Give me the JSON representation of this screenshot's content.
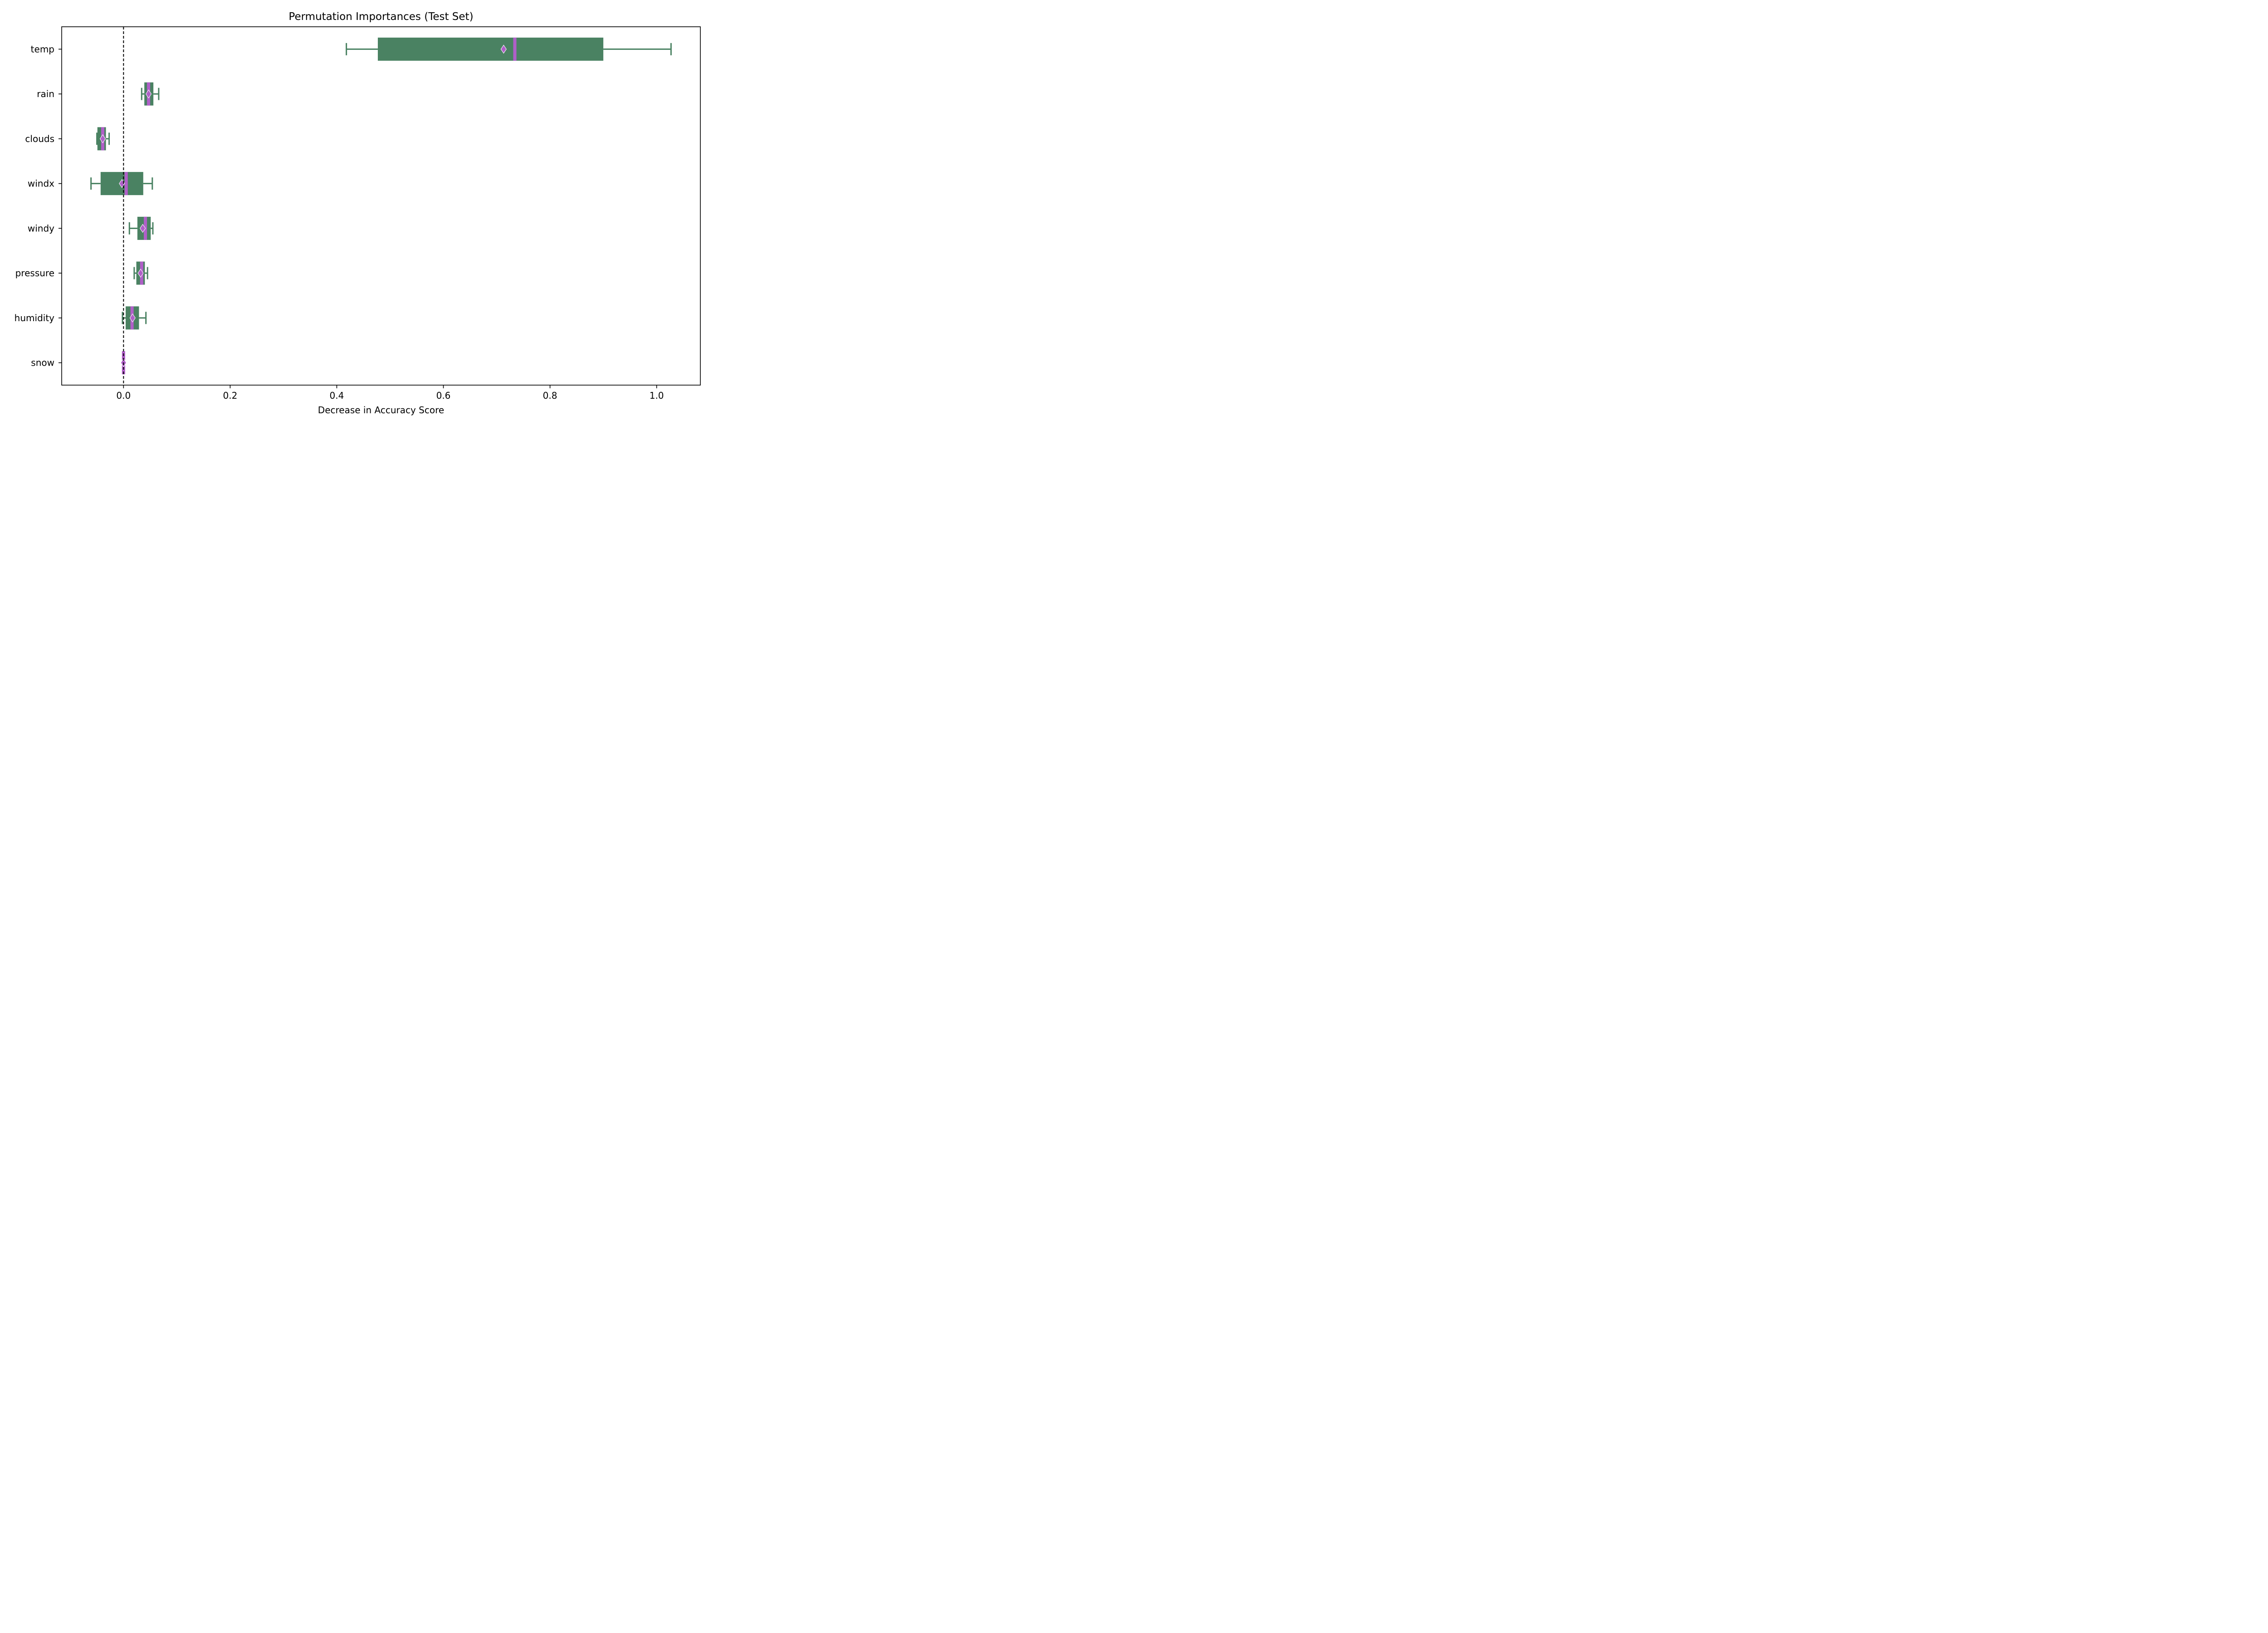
{
  "chart_data": {
    "type": "boxplot",
    "orientation": "horizontal",
    "title": "Permutation Importances (Test Set)",
    "xlabel": "Decrease in Accuracy Score",
    "ylabel": "",
    "xlim": [
      -0.116,
      1.082
    ],
    "x_ticks": [
      0.0,
      0.2,
      0.4,
      0.6,
      0.8,
      1.0
    ],
    "x_tick_labels": [
      "0.0",
      "0.2",
      "0.4",
      "0.6",
      "0.8",
      "1.0"
    ],
    "grid": false,
    "reference_line": {
      "x": 0.0,
      "style": "dashed",
      "color": "#000000"
    },
    "colors": {
      "box": "#4a8262",
      "median": "#b05fc8",
      "mean_marker": "#b05fc8",
      "whisker": "#4a8262"
    },
    "features": [
      {
        "name": "temp",
        "whisker_low": 0.418,
        "q1": 0.477,
        "median": 0.734,
        "q3": 0.9,
        "whisker_high": 1.027,
        "mean": 0.713
      },
      {
        "name": "rain",
        "whisker_low": 0.034,
        "q1": 0.039,
        "median": 0.047,
        "q3": 0.056,
        "whisker_high": 0.066,
        "mean": 0.047
      },
      {
        "name": "clouds",
        "whisker_low": -0.05,
        "q1": -0.049,
        "median": -0.039,
        "q3": -0.033,
        "whisker_high": -0.027,
        "mean": -0.039
      },
      {
        "name": "windx",
        "whisker_low": -0.061,
        "q1": -0.043,
        "median": 0.005,
        "q3": 0.037,
        "whisker_high": 0.054,
        "mean": -0.003
      },
      {
        "name": "windy",
        "whisker_low": 0.011,
        "q1": 0.026,
        "median": 0.041,
        "q3": 0.051,
        "whisker_high": 0.055,
        "mean": 0.036
      },
      {
        "name": "pressure",
        "whisker_low": 0.02,
        "q1": 0.024,
        "median": 0.034,
        "q3": 0.04,
        "whisker_high": 0.045,
        "mean": 0.032
      },
      {
        "name": "humidity",
        "whisker_low": -0.002,
        "q1": 0.004,
        "median": 0.016,
        "q3": 0.029,
        "whisker_high": 0.042,
        "mean": 0.017
      },
      {
        "name": "snow",
        "whisker_low": 0.0,
        "q1": 0.0,
        "median": 0.0,
        "q3": 0.0,
        "whisker_high": 0.0,
        "mean": 0.0
      }
    ]
  }
}
